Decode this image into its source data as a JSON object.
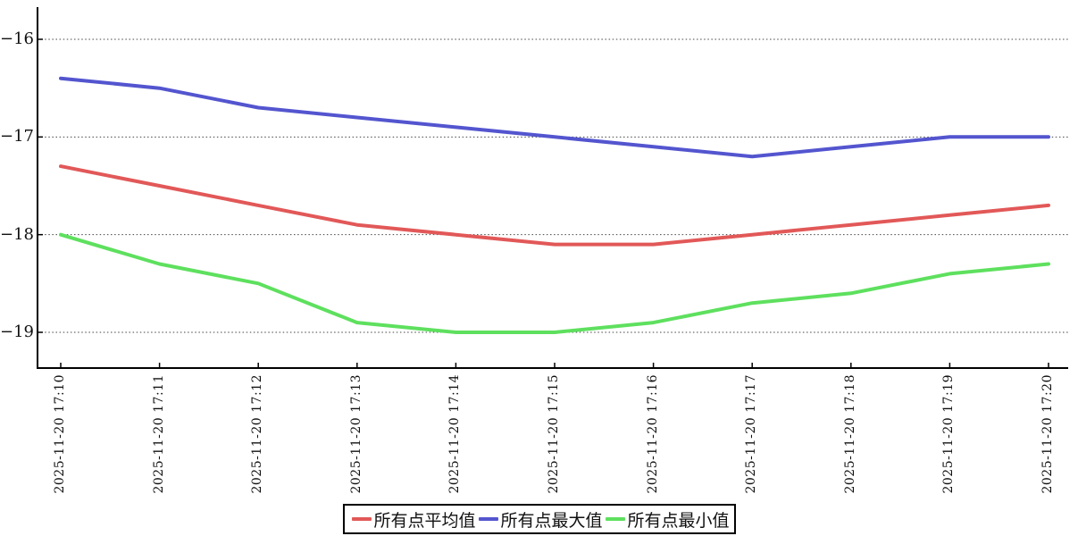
{
  "chart_data": {
    "type": "line",
    "categories": [
      "2025-11-20 17:10",
      "2025-11-20 17:11",
      "2025-11-20 17:12",
      "2025-11-20 17:13",
      "2025-11-20 17:14",
      "2025-11-20 17:15",
      "2025-11-20 17:16",
      "2025-11-20 17:17",
      "2025-11-20 17:18",
      "2025-11-20 17:19",
      "2025-11-20 17:20"
    ],
    "series": [
      {
        "name": "所有点平均值",
        "key": "average",
        "color": "#e25858",
        "values": [
          -17.3,
          -17.5,
          -17.7,
          -17.9,
          -18.0,
          -18.1,
          -18.1,
          -18.0,
          -17.9,
          -17.8,
          -17.7
        ]
      },
      {
        "name": "所有点最大值",
        "key": "max",
        "color": "#5355cf",
        "values": [
          -16.4,
          -16.5,
          -16.7,
          -16.8,
          -16.9,
          -17.0,
          -17.1,
          -17.2,
          -17.1,
          -17.0,
          -17.0
        ]
      },
      {
        "name": "所有点最小值",
        "key": "min",
        "color": "#5ee05e",
        "values": [
          -18.0,
          -18.3,
          -18.5,
          -18.9,
          -19.0,
          -19.0,
          -18.9,
          -18.7,
          -18.6,
          -18.4,
          -18.3
        ]
      }
    ],
    "yticks": [
      -16,
      -17,
      -18,
      -19
    ],
    "ylim": [
      -19.36,
      -15.68
    ],
    "grid": "horizontal-dotted",
    "legend_position": "bottom-center",
    "colors": {
      "axis": "#000000",
      "grid": "#444444",
      "background": "#ffffff",
      "text": "#111111"
    }
  }
}
